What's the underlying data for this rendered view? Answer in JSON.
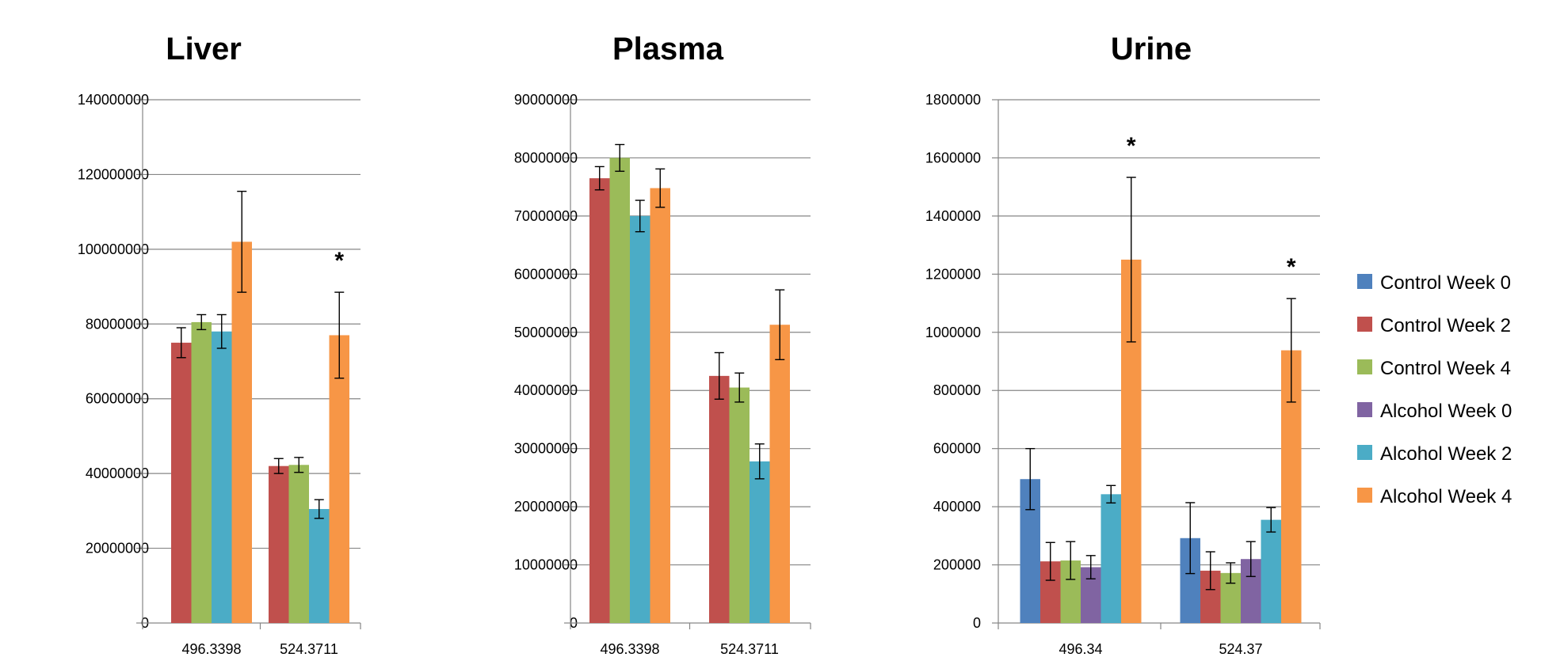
{
  "chart_data": [
    {
      "type": "bar",
      "title": "Liver",
      "categories": [
        "496.3398",
        "524.3711"
      ],
      "ylim": [
        0,
        140000000
      ],
      "yticks": [
        "0",
        "20000000",
        "40000000",
        "60000000",
        "80000000",
        "100000000",
        "120000000",
        "140000000"
      ],
      "grid": true,
      "series": [
        {
          "name": "Control Week 2",
          "values": [
            75000000,
            42000000
          ],
          "errors": [
            4000000,
            2000000
          ]
        },
        {
          "name": "Control Week 4",
          "values": [
            80500000,
            42300000
          ],
          "errors": [
            2000000,
            2000000
          ]
        },
        {
          "name": "Alcohol Week 2",
          "values": [
            78000000,
            30500000
          ],
          "errors": [
            4500000,
            2500000
          ]
        },
        {
          "name": "Alcohol Week 4",
          "values": [
            102000000,
            77000000
          ],
          "errors": [
            13500000,
            11500000
          ]
        }
      ],
      "annotations": [
        {
          "text": "*",
          "category": "524.3711"
        }
      ]
    },
    {
      "type": "bar",
      "title": "Plasma",
      "categories": [
        "496.3398",
        "524.3711"
      ],
      "ylim": [
        0,
        90000000
      ],
      "yticks": [
        "0",
        "10000000",
        "20000000",
        "30000000",
        "40000000",
        "50000000",
        "60000000",
        "70000000",
        "80000000",
        "90000000"
      ],
      "grid": true,
      "series": [
        {
          "name": "Control Week 2",
          "values": [
            76500000,
            42500000
          ],
          "errors": [
            2000000,
            4000000
          ]
        },
        {
          "name": "Control Week 4",
          "values": [
            80000000,
            40500000
          ],
          "errors": [
            2300000,
            2500000
          ]
        },
        {
          "name": "Alcohol Week 2",
          "values": [
            70000000,
            27800000
          ],
          "errors": [
            2700000,
            3000000
          ]
        },
        {
          "name": "Alcohol Week 4",
          "values": [
            74800000,
            51300000
          ],
          "errors": [
            3300000,
            6000000
          ]
        }
      ],
      "annotations": []
    },
    {
      "type": "bar",
      "title": "Urine",
      "categories": [
        "496.34",
        "524.37"
      ],
      "ylim": [
        0,
        1800000
      ],
      "yticks": [
        "0",
        "200000",
        "400000",
        "600000",
        "800000",
        "1000000",
        "1200000",
        "1400000",
        "1600000",
        "1800000"
      ],
      "grid": true,
      "series": [
        {
          "name": "Control Week 0",
          "values": [
            495000,
            292000
          ],
          "errors": [
            105000,
            122000
          ]
        },
        {
          "name": "Control Week 2",
          "values": [
            212000,
            180000
          ],
          "errors": [
            65000,
            65000
          ]
        },
        {
          "name": "Control Week 4",
          "values": [
            215000,
            172000
          ],
          "errors": [
            65000,
            35000
          ]
        },
        {
          "name": "Alcohol Week 0",
          "values": [
            192000,
            220000
          ],
          "errors": [
            40000,
            60000
          ]
        },
        {
          "name": "Alcohol Week 2",
          "values": [
            443000,
            355000
          ],
          "errors": [
            30000,
            42000
          ]
        },
        {
          "name": "Alcohol Week 4",
          "values": [
            1250000,
            938000
          ],
          "errors": [
            283000,
            178000
          ]
        }
      ],
      "annotations": [
        {
          "text": "*",
          "category": "496.34"
        },
        {
          "text": "*",
          "category": "524.37"
        }
      ]
    }
  ],
  "legend": {
    "placement": "right",
    "items": [
      {
        "label": "Control Week 0",
        "color": "#4F81BD"
      },
      {
        "label": "Control Week 2",
        "color": "#C0504D"
      },
      {
        "label": "Control Week 4",
        "color": "#9BBB59"
      },
      {
        "label": "Alcohol Week 0",
        "color": "#8064A2"
      },
      {
        "label": "Alcohol Week 2",
        "color": "#4BACC6"
      },
      {
        "label": "Alcohol Week 4",
        "color": "#F79646"
      }
    ]
  },
  "colors": {
    "Control Week 0": "#4F81BD",
    "Control Week 2": "#C0504D",
    "Control Week 4": "#9BBB59",
    "Alcohol Week 0": "#8064A2",
    "Alcohol Week 2": "#4BACC6",
    "Alcohol Week 4": "#F79646"
  }
}
